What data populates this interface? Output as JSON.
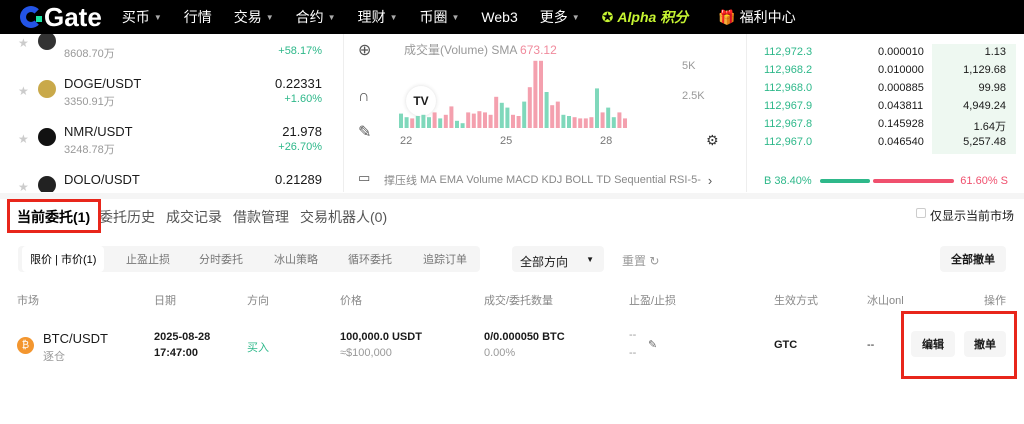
{
  "nav": {
    "logo": "Gate",
    "items": [
      {
        "label": "买币",
        "caret": true
      },
      {
        "label": "行情",
        "caret": false
      },
      {
        "label": "交易",
        "caret": true
      },
      {
        "label": "合约",
        "caret": true
      },
      {
        "label": "理财",
        "caret": true
      },
      {
        "label": "币圈",
        "caret": true
      },
      {
        "label": "Web3",
        "caret": false
      },
      {
        "label": "更多",
        "caret": true
      }
    ],
    "alpha": "Alpha 积分",
    "welfare": "福利中心"
  },
  "markets": [
    {
      "pair": "",
      "volume": "8608.70万",
      "price": "",
      "change": "+58.17%",
      "coin_color": "#333333"
    },
    {
      "pair": "DOGE/USDT",
      "volume": "3350.91万",
      "price": "0.22331",
      "change": "+1.60%",
      "coin_color": "#c9a94a"
    },
    {
      "pair": "NMR/USDT",
      "volume": "3248.78万",
      "price": "21.978",
      "change": "+26.70%",
      "coin_color": "#111111"
    },
    {
      "pair": "DOLO/USDT",
      "volume": "",
      "price": "0.21289",
      "change": "",
      "coin_color": "#222222"
    }
  ],
  "chart": {
    "legend": "成交量(Volume) SMA",
    "sma_value": "673.12",
    "y_ticks": [
      "5K",
      "2.5K"
    ],
    "x_ticks": [
      "22",
      "25",
      "28"
    ],
    "volumes": [
      1200,
      900,
      800,
      1000,
      1100,
      900,
      1300,
      800,
      1100,
      1800,
      600,
      400,
      1300,
      1200,
      1400,
      1300,
      1100,
      2600,
      2100,
      1700,
      1100,
      1000,
      2200,
      3400,
      5600,
      5600,
      3000,
      1900,
      2200,
      1100,
      1000,
      900,
      800,
      800,
      900,
      3300,
      1300,
      1700,
      900,
      1300,
      800
    ],
    "up_color": "#7fd8bb",
    "down_color": "#f4a0ae",
    "indicators": [
      "撑压线",
      "MA",
      "EMA",
      "Volume",
      "MACD",
      "KDJ",
      "BOLL",
      "TD Sequential",
      "RSI-5-"
    ]
  },
  "orderbook": {
    "rows": [
      [
        "112,972.3",
        "0.000010",
        "1.13"
      ],
      [
        "112,968.2",
        "0.010000",
        "1,129.68"
      ],
      [
        "112,968.0",
        "0.000885",
        "99.98"
      ],
      [
        "112,967.9",
        "0.043811",
        "4,949.24"
      ],
      [
        "112,967.8",
        "0.145928",
        "1.64万"
      ],
      [
        "112,967.0",
        "0.046540",
        "5,257.48"
      ]
    ],
    "buy_label": "B 38.40%",
    "sell_label": "61.60% S",
    "buy_ratio": 38.4
  },
  "tabs": [
    "当前委托(1)",
    "委托历史",
    "成交记录",
    "借款管理",
    "交易机器人(0)"
  ],
  "only_current": "仅显示当前市场",
  "subtabs": [
    "限价 | 市价(1)",
    "止盈止损",
    "分时委托",
    "冰山策略",
    "循环委托",
    "追踪订单"
  ],
  "direction_select": "全部方向",
  "reset": "重置",
  "cancel_all": "全部撤单",
  "columns": [
    "市场",
    "日期",
    "方向",
    "价格",
    "成交/委托数量",
    "止盈/止损",
    "生效方式",
    "冰山onl",
    "操作"
  ],
  "order": {
    "pair": "BTC/USDT",
    "account": "逐仓",
    "date": "2025-08-28",
    "time": "17:47:00",
    "side": "买入",
    "price": "100,000.0 USDT",
    "price_usd": "≈$100,000",
    "filled": "0/0.000050 BTC",
    "filled_pct": "0.00%",
    "tp": "--",
    "sl": "--",
    "tif": "GTC",
    "iceberg": "--",
    "edit": "编辑",
    "cancel": "撤单"
  }
}
